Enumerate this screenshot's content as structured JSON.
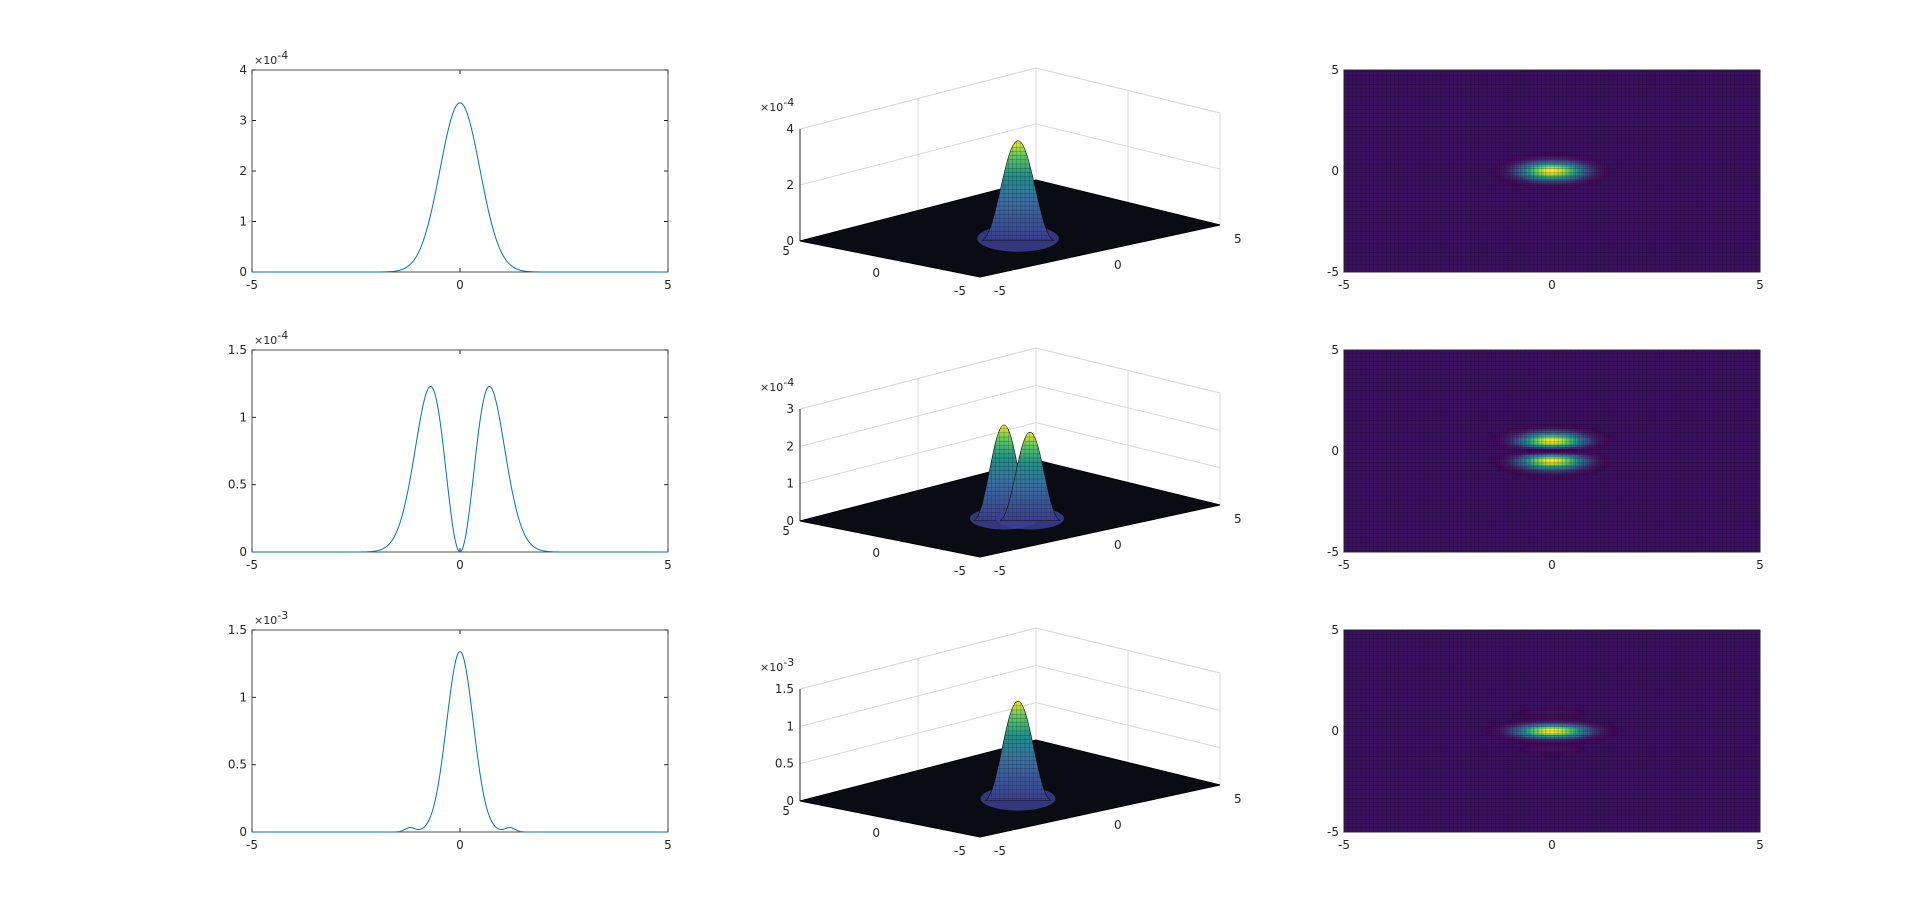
{
  "figure": {
    "background": "#ffffff",
    "line_color": "#0072BD",
    "axis_color": "#262626",
    "grid_color": "#d9d9d9",
    "colormap": [
      "#440154",
      "#3b528b",
      "#21918c",
      "#5ec962",
      "#fde725"
    ],
    "mesh_color": "#000000"
  },
  "chart_data": [
    {
      "type": "line",
      "row": 1,
      "xlim": [
        -5,
        5
      ],
      "ylim": [
        0,
        4
      ],
      "xticks": [
        "-5",
        "0",
        "5"
      ],
      "yticks": [
        "0",
        "1",
        "2",
        "3",
        "4"
      ],
      "multiplier": "×10",
      "multiplier_exp": "-4",
      "grid": false,
      "profile": {
        "kind": "gauss",
        "peak": 3.35,
        "sigma": 0.48
      },
      "x": [
        -5,
        -4,
        -3,
        -2,
        -1.5,
        -1,
        -0.75,
        -0.5,
        -0.25,
        0,
        0.25,
        0.5,
        0.75,
        1,
        1.5,
        2,
        3,
        4,
        5
      ],
      "y": [
        0,
        0,
        0,
        0.01,
        0.02,
        0.38,
        0.99,
        1.95,
        2.92,
        3.35,
        2.92,
        1.95,
        0.99,
        0.38,
        0.02,
        0.01,
        0,
        0,
        0
      ]
    },
    {
      "type": "surface",
      "row": 1,
      "zlim": [
        0,
        4
      ],
      "zticks": [
        "0",
        "2",
        "4"
      ],
      "xticks": [
        "-5",
        "0",
        "5"
      ],
      "yticks": [
        "-5",
        "0",
        "5"
      ],
      "multiplier": "×10",
      "multiplier_exp": "-4",
      "profile": {
        "kind": "gauss",
        "peak": 3.35,
        "sigma": 0.48
      },
      "grid": true
    },
    {
      "type": "heatmap",
      "row": 1,
      "xlim": [
        -5,
        5
      ],
      "ylim": [
        -5,
        5
      ],
      "xticks": [
        "-5",
        "0",
        "5"
      ],
      "yticks": [
        "-5",
        "0",
        "5"
      ],
      "profile": {
        "kind": "gauss",
        "sigma_x": 0.5,
        "sigma_y": 0.3
      },
      "view": "top"
    },
    {
      "type": "line",
      "row": 2,
      "xlim": [
        -5,
        5
      ],
      "ylim": [
        0,
        1.5
      ],
      "xticks": [
        "-5",
        "0",
        "5"
      ],
      "yticks": [
        "0",
        "0.5",
        "1",
        "1.5"
      ],
      "multiplier": "×10",
      "multiplier_exp": "-4",
      "grid": false,
      "profile": {
        "kind": "double",
        "peak": 1.23,
        "sigma": 0.5
      },
      "x": [
        -5,
        -2,
        -1.5,
        -1,
        -0.75,
        -0.5,
        -0.25,
        0,
        0.25,
        0.5,
        0.75,
        1,
        1.5,
        2,
        5
      ],
      "y": [
        0,
        0.01,
        0.07,
        0.55,
        1.02,
        1.22,
        0.75,
        0,
        0.75,
        1.22,
        1.02,
        0.55,
        0.07,
        0.01,
        0
      ]
    },
    {
      "type": "surface",
      "row": 2,
      "zlim": [
        0,
        3
      ],
      "zticks": [
        "0",
        "1",
        "2",
        "3"
      ],
      "xticks": [
        "-5",
        "0",
        "5"
      ],
      "yticks": [
        "-5",
        "0",
        "5"
      ],
      "multiplier": "×10",
      "multiplier_exp": "-4",
      "profile": {
        "kind": "double",
        "peak": 2.45,
        "sigma": 0.45
      },
      "grid": true
    },
    {
      "type": "heatmap",
      "row": 2,
      "xlim": [
        -5,
        5
      ],
      "ylim": [
        -5,
        5
      ],
      "xticks": [
        "-5",
        "0",
        "5"
      ],
      "yticks": [
        "-5",
        "0",
        "5"
      ],
      "profile": {
        "kind": "double",
        "sigma_x": 0.5,
        "sigma_y": 0.35
      },
      "view": "top"
    },
    {
      "type": "line",
      "row": 3,
      "xlim": [
        -5,
        5
      ],
      "ylim": [
        0,
        1.5
      ],
      "xticks": [
        "-5",
        "0",
        "5"
      ],
      "yticks": [
        "0",
        "0.5",
        "1",
        "1.5"
      ],
      "multiplier": "×10",
      "multiplier_exp": "-3",
      "grid": false,
      "profile": {
        "kind": "sinc",
        "peak": 1.34,
        "sigma": 0.32
      },
      "x": [
        -5,
        -2,
        -1.5,
        -1.2,
        -1,
        -0.75,
        -0.5,
        -0.25,
        0,
        0.25,
        0.5,
        0.75,
        1,
        1.2,
        1.5,
        2,
        5
      ],
      "y": [
        0,
        0.005,
        0.01,
        0.035,
        0.02,
        0.02,
        0.25,
        0.98,
        1.34,
        0.98,
        0.25,
        0.02,
        0.02,
        0.035,
        0.01,
        0.005,
        0
      ]
    },
    {
      "type": "surface",
      "row": 3,
      "zlim": [
        0,
        1.5
      ],
      "zticks": [
        "0",
        "0.5",
        "1",
        "1.5"
      ],
      "xticks": [
        "-5",
        "0",
        "5"
      ],
      "yticks": [
        "-5",
        "0",
        "5"
      ],
      "multiplier": "×10",
      "multiplier_exp": "-3",
      "profile": {
        "kind": "sinc",
        "peak": 1.25,
        "sigma": 0.32
      },
      "grid": true
    },
    {
      "type": "heatmap",
      "row": 3,
      "xlim": [
        -5,
        5
      ],
      "ylim": [
        -5,
        5
      ],
      "xticks": [
        "-5",
        "0",
        "5"
      ],
      "yticks": [
        "-5",
        "0",
        "5"
      ],
      "profile": {
        "kind": "sinc",
        "sigma_x": 0.55,
        "sigma_y": 0.22
      },
      "view": "top"
    }
  ]
}
